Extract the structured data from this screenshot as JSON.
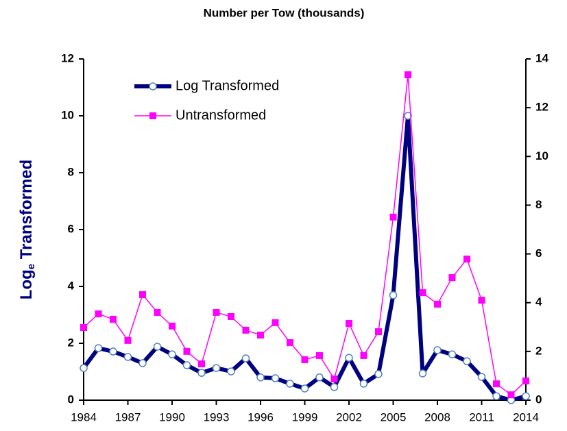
{
  "chart_data": {
    "type": "line",
    "title": "Number per Tow (thousands)",
    "y_label": [
      "Log",
      "e",
      " Transformed"
    ],
    "x": [
      1984,
      1985,
      1986,
      1987,
      1988,
      1989,
      1990,
      1991,
      1992,
      1993,
      1994,
      1995,
      1996,
      1997,
      1998,
      1999,
      2000,
      2001,
      2002,
      2003,
      2004,
      2005,
      2006,
      2007,
      2008,
      2009,
      2010,
      2011,
      2012,
      2013,
      2014
    ],
    "xlim": [
      1984,
      2014
    ],
    "xticks": [
      1984,
      1987,
      1990,
      1993,
      1996,
      1999,
      2002,
      2005,
      2008,
      2011,
      2014
    ],
    "ylim": [
      0,
      12
    ],
    "yticks": [
      0,
      2,
      4,
      6,
      8,
      10,
      12
    ],
    "y2lim": [
      0,
      14
    ],
    "y2ticks": [
      0,
      2,
      4,
      6,
      8,
      10,
      12,
      14
    ],
    "legend": "upper left",
    "series": [
      {
        "name": "Log Transformed",
        "color": "#000080",
        "marker": "circle",
        "values": [
          1.13,
          1.83,
          1.71,
          1.52,
          1.3,
          1.88,
          1.61,
          1.23,
          0.96,
          1.13,
          1.01,
          1.47,
          0.8,
          0.77,
          0.58,
          0.41,
          0.8,
          0.46,
          1.49,
          0.58,
          0.92,
          3.69,
          10.0,
          0.94,
          1.76,
          1.61,
          1.37,
          0.82,
          0.14,
          0.0,
          0.14
        ]
      },
      {
        "name": "Untransformed",
        "color": "#ff00ff",
        "marker": "square",
        "axis": "y2",
        "values": [
          2.98,
          3.54,
          3.32,
          2.45,
          4.33,
          3.6,
          3.04,
          2.0,
          1.49,
          3.6,
          3.43,
          2.87,
          2.67,
          3.18,
          2.36,
          1.66,
          1.83,
          0.87,
          3.15,
          1.83,
          2.81,
          7.51,
          13.35,
          4.41,
          3.94,
          5.03,
          5.79,
          4.1,
          0.67,
          0.22,
          0.79
        ]
      }
    ]
  }
}
